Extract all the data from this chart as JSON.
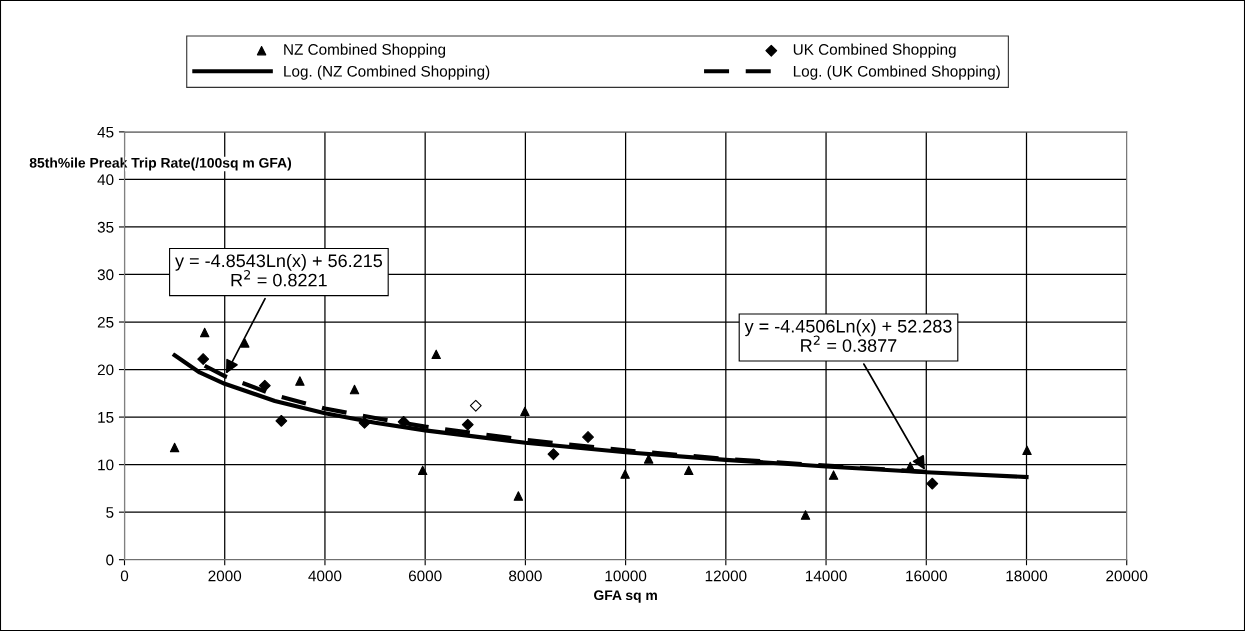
{
  "chart_data": {
    "type": "scatter",
    "xlabel": "GFA sq m",
    "ylabel": "85th%ile Preak Trip Rate(/100sq m GFA)",
    "xlim": [
      0,
      20000
    ],
    "xticks": [
      0,
      2000,
      4000,
      6000,
      8000,
      10000,
      12000,
      14000,
      16000,
      18000,
      20000
    ],
    "ylim": [
      0,
      45
    ],
    "yticks": [
      0,
      5,
      10,
      15,
      20,
      25,
      30,
      35,
      40,
      45
    ],
    "grid": true,
    "legend": "top",
    "series": [
      {
        "name": "NZ Combined Shopping",
        "marker": "triangle",
        "color": "#000000",
        "x": [
          1000,
          1600,
          2400,
          3500,
          4590,
          5950,
          6220,
          7860,
          7990,
          9990,
          10460,
          11260,
          13590,
          14150,
          15680,
          18010
        ],
        "values": [
          11.8,
          23.9,
          22.8,
          18.8,
          17.9,
          9.4,
          21.6,
          6.7,
          15.6,
          9.0,
          10.6,
          9.4,
          4.7,
          8.9,
          9.8,
          11.5
        ]
      },
      {
        "name": "UK Combined Shopping",
        "marker": "diamond",
        "color": "#000000",
        "x": [
          1570,
          2800,
          3130,
          4790,
          5570,
          6850,
          7010,
          8560,
          9250,
          16120
        ],
        "values": [
          21.1,
          18.3,
          14.6,
          14.4,
          14.5,
          14.2,
          16.2,
          11.1,
          12.9,
          8.0
        ],
        "colors": [
          "#000000",
          "#000000",
          "#000000",
          "#000000",
          "#000000",
          "#000000",
          "#ffffff",
          "#000000",
          "#000000",
          "#000000"
        ]
      },
      {
        "name": "Log. (NZ Combined Shopping)",
        "type": "line",
        "line_style": "solid",
        "color": "#000000",
        "x": [
          1000,
          1500,
          2000,
          3000,
          4000,
          5000,
          6000,
          8000,
          10000,
          12000,
          14000,
          16000,
          18000
        ],
        "values": [
          21.5,
          19.7,
          18.5,
          16.7,
          15.4,
          14.4,
          13.6,
          12.3,
          11.3,
          10.5,
          9.8,
          9.2,
          8.7
        ]
      },
      {
        "name": "Log. (UK Combined Shopping)",
        "type": "line",
        "line_style": "dashed",
        "color": "#000000",
        "x": [
          1600,
          2000,
          3000,
          4000,
          5000,
          6000,
          8000,
          10000,
          12000,
          14000,
          16100
        ],
        "values": [
          20.4,
          19.3,
          17.3,
          15.9,
          14.9,
          14.0,
          12.6,
          11.5,
          10.6,
          9.9,
          9.2
        ]
      }
    ],
    "annotations": [
      {
        "text": "y = -4.8543Ln(x) + 56.215\nR$^{2}$ = 0.8221",
        "x": 2000,
        "y": 19.3
      },
      {
        "text": "y = -4.4506Ln(x) + 52.283\nR$^{2}$ = 0.3877",
        "x": 16000,
        "y": 9.2
      }
    ]
  }
}
